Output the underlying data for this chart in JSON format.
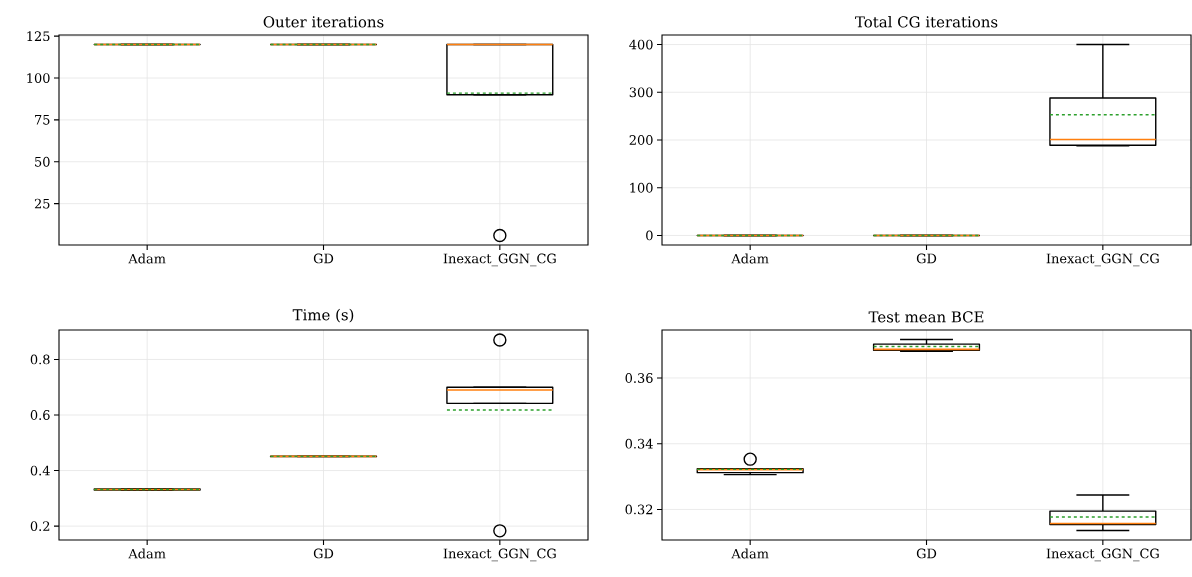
{
  "chart_data": [
    {
      "type": "box",
      "title": "Outer iterations",
      "categories": [
        "Adam",
        "GD",
        "Inexact_GGN_CG"
      ],
      "ylim": [
        0.3,
        125.7
      ],
      "yticks": [
        25,
        50,
        75,
        100,
        125
      ],
      "grid": true,
      "boxes": [
        {
          "low": 120,
          "q1": 120,
          "median": 120,
          "q3": 120,
          "high": 120,
          "mean": 120
        },
        {
          "low": 120,
          "q1": 120,
          "median": 120,
          "q3": 120,
          "high": 120,
          "mean": 120
        },
        {
          "low": 90,
          "q1": 90,
          "median": 120,
          "q3": 120,
          "high": 120,
          "mean": 91,
          "outliers": [
            6
          ]
        }
      ]
    },
    {
      "type": "box",
      "title": "Total CG iterations",
      "categories": [
        "Adam",
        "GD",
        "Inexact_GGN_CG"
      ],
      "ylim": [
        -20,
        420
      ],
      "yticks": [
        0,
        100,
        200,
        300,
        400
      ],
      "grid": true,
      "boxes": [
        {
          "low": 0,
          "q1": 0,
          "median": 0,
          "q3": 0,
          "high": 0,
          "mean": 0
        },
        {
          "low": 0,
          "q1": 0,
          "median": 0,
          "q3": 0,
          "high": 0,
          "mean": 0
        },
        {
          "low": 188,
          "q1": 189,
          "median": 201,
          "q3": 288,
          "high": 400,
          "mean": 253
        }
      ]
    },
    {
      "type": "box",
      "title": "Time (s)",
      "categories": [
        "Adam",
        "GD",
        "Inexact_GGN_CG"
      ],
      "ylim": [
        0.15,
        0.906
      ],
      "yticks": [
        0.2,
        0.4,
        0.6,
        0.8
      ],
      "grid": true,
      "boxes": [
        {
          "low": 0.33,
          "q1": 0.33,
          "median": 0.332,
          "q3": 0.334,
          "high": 0.334,
          "mean": 0.332
        },
        {
          "low": 0.45,
          "q1": 0.45,
          "median": 0.451,
          "q3": 0.452,
          "high": 0.452,
          "mean": 0.451
        },
        {
          "low": 0.642,
          "q1": 0.642,
          "median": 0.69,
          "q3": 0.7,
          "high": 0.7,
          "mean": 0.618,
          "outliers": [
            0.87,
            0.183
          ]
        }
      ]
    },
    {
      "type": "box",
      "title": "Test mean BCE",
      "categories": [
        "Adam",
        "GD",
        "Inexact_GGN_CG"
      ],
      "ylim": [
        0.3107,
        0.3746
      ],
      "yticks": [
        0.32,
        0.34,
        0.36
      ],
      "grid": true,
      "boxes": [
        {
          "low": 0.3306,
          "q1": 0.3312,
          "median": 0.3321,
          "q3": 0.3324,
          "high": 0.3324,
          "mean": 0.3322,
          "outliers": [
            0.3353
          ]
        },
        {
          "low": 0.3681,
          "q1": 0.3684,
          "median": 0.3687,
          "q3": 0.3703,
          "high": 0.3717,
          "mean": 0.3696
        },
        {
          "low": 0.3136,
          "q1": 0.3154,
          "median": 0.3157,
          "q3": 0.3195,
          "high": 0.3244,
          "mean": 0.3177
        }
      ]
    }
  ]
}
